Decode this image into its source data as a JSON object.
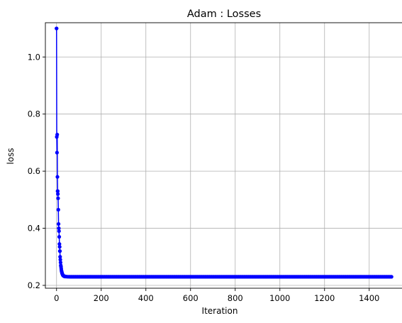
{
  "chart_data": {
    "type": "line",
    "title": "Adam : Losses",
    "xlabel": "Iteration",
    "ylabel": "loss",
    "xlim": [
      -50,
      1550
    ],
    "ylim": [
      0.19,
      1.12
    ],
    "xticks": [
      0,
      200,
      400,
      600,
      800,
      1000,
      1200,
      1400
    ],
    "xtick_labels": [
      "0",
      "200",
      "400",
      "600",
      "800",
      "1000",
      "1200",
      "1400"
    ],
    "yticks": [
      0.2,
      0.4,
      0.6,
      0.8,
      1.0
    ],
    "ytick_labels": [
      "0.2",
      "0.4",
      "0.6",
      "0.8",
      "1.0"
    ],
    "grid": true,
    "legend": "none",
    "series": [
      {
        "color": "#0000ff",
        "marker": "circle",
        "x": [
          0,
          1,
          2,
          3,
          4,
          5,
          6,
          7,
          8,
          9,
          10,
          11,
          12,
          13,
          14,
          15,
          16,
          17,
          18,
          19,
          20,
          21,
          22,
          23,
          24,
          25,
          26,
          27,
          28,
          29,
          30,
          32,
          34,
          36,
          38,
          40,
          45,
          50,
          55,
          60,
          70,
          80,
          100,
          150,
          200,
          300,
          400,
          500,
          600,
          700,
          800,
          900,
          1000,
          1100,
          1200,
          1300,
          1400,
          1500
        ],
        "y": [
          1.1,
          0.72,
          0.665,
          0.728,
          0.58,
          0.53,
          0.52,
          0.505,
          0.465,
          0.415,
          0.4,
          0.39,
          0.37,
          0.345,
          0.335,
          0.32,
          0.3,
          0.29,
          0.28,
          0.27,
          0.265,
          0.258,
          0.252,
          0.248,
          0.245,
          0.242,
          0.24,
          0.238,
          0.236,
          0.235,
          0.234,
          0.233,
          0.232,
          0.232,
          0.231,
          0.231,
          0.2305,
          0.2303,
          0.2302,
          0.2301,
          0.23,
          0.23,
          0.23,
          0.23,
          0.23,
          0.23,
          0.23,
          0.23,
          0.23,
          0.23,
          0.23,
          0.23,
          0.23,
          0.23,
          0.23,
          0.23,
          0.23,
          0.23
        ]
      }
    ]
  }
}
